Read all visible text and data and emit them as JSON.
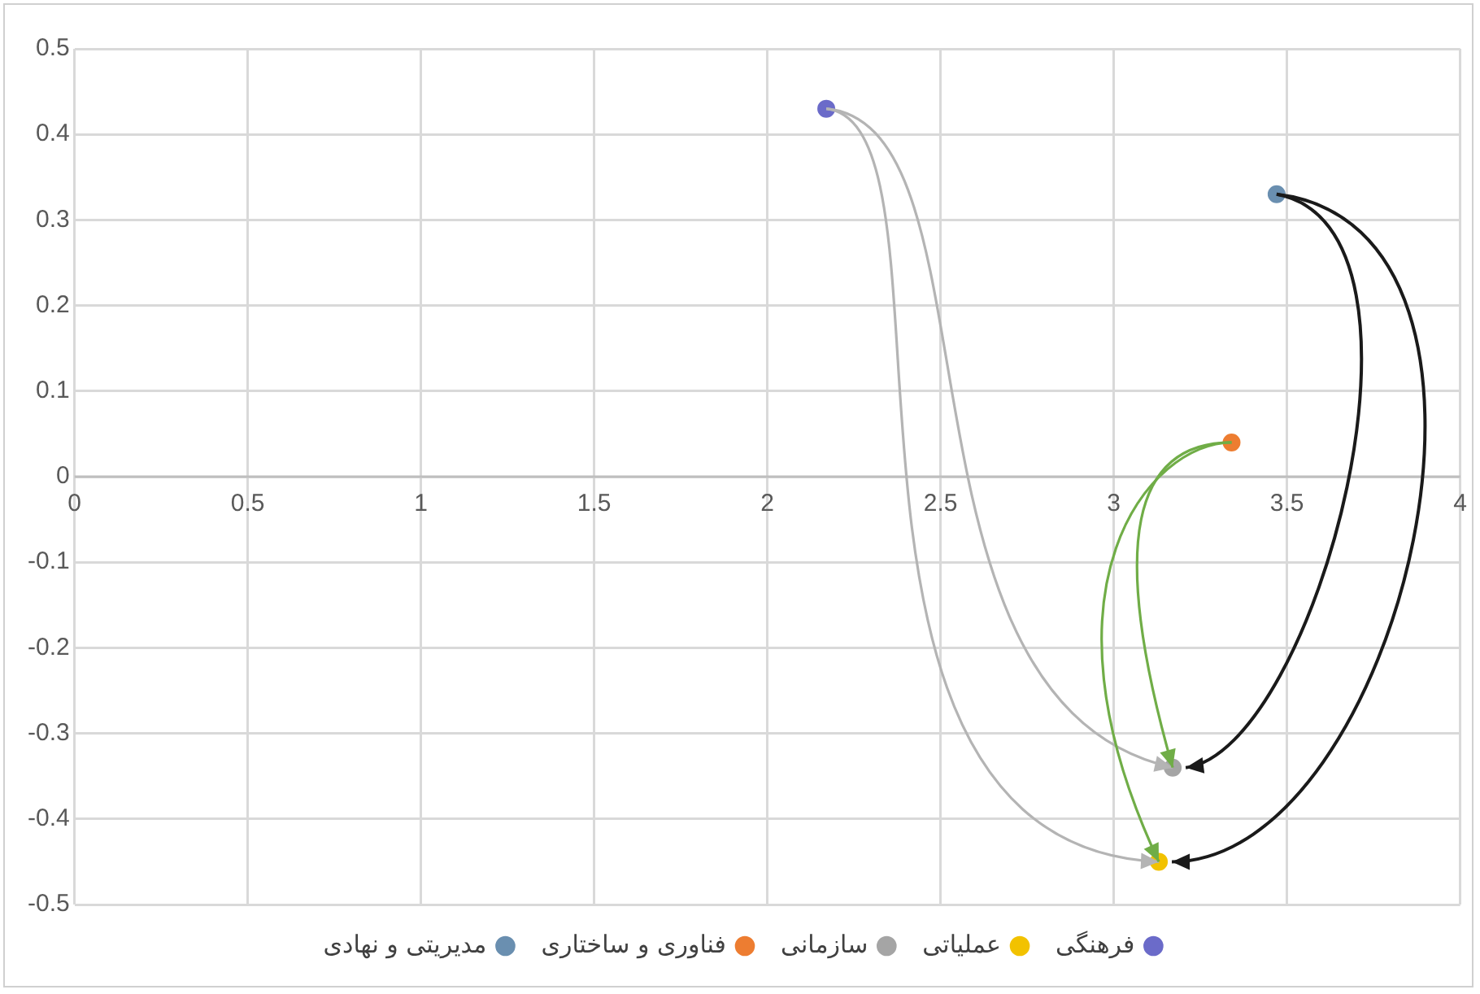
{
  "chart_data": {
    "type": "scatter",
    "legend": "bottom",
    "grid": true,
    "marker": "circle",
    "xlim": [
      0,
      4
    ],
    "xticks": [
      0,
      0.5,
      1,
      1.5,
      2,
      2.5,
      3,
      3.5,
      4
    ],
    "ylim": [
      -0.5,
      0.5
    ],
    "yticks": [
      -0.5,
      -0.4,
      -0.3,
      -0.2,
      -0.1,
      0,
      0.1,
      0.2,
      0.3,
      0.4,
      0.5
    ],
    "series": [
      {
        "name": "فرهنگی",
        "color": "#6b6bc9",
        "x": [
          2.17
        ],
        "values": [
          0.43
        ]
      },
      {
        "name": "عملیاتی",
        "color": "#f2c200",
        "x": [
          3.13
        ],
        "values": [
          -0.45
        ]
      },
      {
        "name": "سازمانی",
        "color": "#a5a5a5",
        "x": [
          3.17
        ],
        "values": [
          -0.34
        ]
      },
      {
        "name": "فناوری و ساختاری",
        "color": "#ed7d31",
        "x": [
          3.34
        ],
        "values": [
          0.04
        ]
      },
      {
        "name": "مدیریتی و نهادی",
        "color": "#6a8fb0",
        "x": [
          3.47
        ],
        "values": [
          0.33
        ]
      }
    ]
  }
}
